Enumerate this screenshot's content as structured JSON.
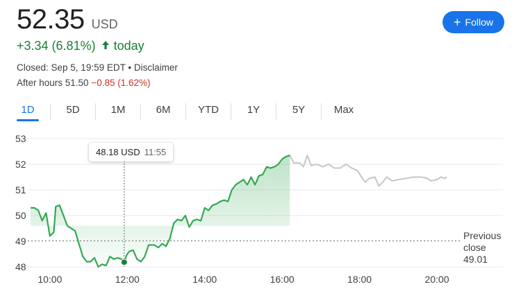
{
  "quote": {
    "price": "52.35",
    "currency": "USD",
    "change": "+3.34 (6.81%)",
    "change_period": "today",
    "closed_text": "Closed: Sep 5, 19:59 EDT • Disclaimer",
    "after_hours_label": "After hours 51.50",
    "after_hours_change": "−0.85 (1.62%)"
  },
  "follow_button": {
    "label": "Follow",
    "icon": "plus-icon"
  },
  "tabs": [
    {
      "label": "1D",
      "active": true
    },
    {
      "label": "5D",
      "active": false
    },
    {
      "label": "1M",
      "active": false
    },
    {
      "label": "6M",
      "active": false
    },
    {
      "label": "YTD",
      "active": false
    },
    {
      "label": "1Y",
      "active": false
    },
    {
      "label": "5Y",
      "active": false
    },
    {
      "label": "Max",
      "active": false
    }
  ],
  "tooltip": {
    "value": "48.18 USD",
    "time": "11:55"
  },
  "previous_close": {
    "line1": "Previous",
    "line2": "close",
    "value": "49.01"
  },
  "colors": {
    "up": "#188038",
    "down": "#d93025",
    "accent": "#1a73e8",
    "after_hours_line": "#c4c7c5",
    "grid": "#e8eaed"
  },
  "chart_data": {
    "type": "line",
    "x_unit": "hours",
    "xlim": [
      9.5,
      20.7
    ],
    "ylim": [
      48,
      53
    ],
    "x_ticks": [
      {
        "v": 10,
        "label": "10:00"
      },
      {
        "v": 12,
        "label": "12:00"
      },
      {
        "v": 14,
        "label": "14:00"
      },
      {
        "v": 16,
        "label": "16:00"
      },
      {
        "v": 18,
        "label": "18:00"
      },
      {
        "v": 20,
        "label": "20:00"
      }
    ],
    "y_ticks": [
      48,
      49,
      50,
      51,
      52,
      53
    ],
    "previous_close": 49.01,
    "marker": {
      "x": 11.92,
      "y": 48.18
    },
    "regular_session": [
      [
        9.5,
        50.3
      ],
      [
        9.6,
        50.3
      ],
      [
        9.7,
        50.2
      ],
      [
        9.8,
        49.8
      ],
      [
        9.9,
        50.1
      ],
      [
        10.0,
        49.2
      ],
      [
        10.1,
        49.35
      ],
      [
        10.15,
        50.35
      ],
      [
        10.25,
        50.4
      ],
      [
        10.35,
        50.0
      ],
      [
        10.45,
        49.6
      ],
      [
        10.55,
        49.5
      ],
      [
        10.65,
        49.4
      ],
      [
        10.75,
        48.9
      ],
      [
        10.85,
        48.4
      ],
      [
        10.95,
        48.2
      ],
      [
        11.05,
        48.2
      ],
      [
        11.15,
        48.35
      ],
      [
        11.25,
        48.0
      ],
      [
        11.35,
        48.1
      ],
      [
        11.45,
        48.05
      ],
      [
        11.55,
        48.4
      ],
      [
        11.65,
        48.3
      ],
      [
        11.75,
        48.35
      ],
      [
        11.85,
        48.3
      ],
      [
        11.92,
        48.18
      ],
      [
        11.98,
        48.45
      ],
      [
        12.05,
        48.6
      ],
      [
        12.15,
        48.65
      ],
      [
        12.25,
        48.3
      ],
      [
        12.35,
        48.2
      ],
      [
        12.45,
        48.4
      ],
      [
        12.55,
        48.85
      ],
      [
        12.7,
        48.85
      ],
      [
        12.8,
        48.75
      ],
      [
        12.9,
        48.9
      ],
      [
        13.0,
        48.8
      ],
      [
        13.1,
        49.1
      ],
      [
        13.2,
        49.7
      ],
      [
        13.3,
        49.85
      ],
      [
        13.4,
        49.8
      ],
      [
        13.5,
        50.0
      ],
      [
        13.6,
        49.55
      ],
      [
        13.7,
        49.8
      ],
      [
        13.8,
        49.85
      ],
      [
        13.9,
        49.8
      ],
      [
        14.0,
        50.3
      ],
      [
        14.1,
        50.2
      ],
      [
        14.2,
        50.4
      ],
      [
        14.3,
        50.45
      ],
      [
        14.4,
        50.55
      ],
      [
        14.5,
        50.6
      ],
      [
        14.6,
        50.55
      ],
      [
        14.7,
        51.0
      ],
      [
        14.8,
        51.2
      ],
      [
        14.9,
        51.3
      ],
      [
        15.0,
        51.4
      ],
      [
        15.1,
        51.2
      ],
      [
        15.2,
        51.5
      ],
      [
        15.3,
        51.2
      ],
      [
        15.4,
        51.55
      ],
      [
        15.5,
        51.6
      ],
      [
        15.6,
        51.9
      ],
      [
        15.7,
        51.85
      ],
      [
        15.8,
        51.9
      ],
      [
        15.9,
        52.0
      ],
      [
        16.0,
        52.2
      ],
      [
        16.1,
        52.3
      ],
      [
        16.2,
        52.35
      ]
    ],
    "after_hours": [
      [
        16.2,
        52.35
      ],
      [
        16.3,
        52.05
      ],
      [
        16.45,
        52.05
      ],
      [
        16.55,
        51.9
      ],
      [
        16.65,
        52.35
      ],
      [
        16.75,
        51.95
      ],
      [
        16.9,
        52.0
      ],
      [
        17.05,
        51.9
      ],
      [
        17.2,
        52.0
      ],
      [
        17.35,
        51.85
      ],
      [
        17.5,
        51.85
      ],
      [
        17.65,
        52.0
      ],
      [
        17.8,
        51.85
      ],
      [
        17.95,
        51.75
      ],
      [
        18.05,
        51.5
      ],
      [
        18.15,
        51.3
      ],
      [
        18.25,
        51.45
      ],
      [
        18.4,
        51.5
      ],
      [
        18.5,
        51.15
      ],
      [
        18.6,
        51.3
      ],
      [
        18.7,
        51.5
      ],
      [
        18.85,
        51.35
      ],
      [
        19.0,
        51.4
      ],
      [
        19.2,
        51.45
      ],
      [
        19.4,
        51.5
      ],
      [
        19.6,
        51.5
      ],
      [
        19.75,
        51.45
      ],
      [
        19.85,
        51.35
      ],
      [
        20.0,
        51.4
      ],
      [
        20.1,
        51.5
      ],
      [
        20.2,
        51.45
      ],
      [
        20.25,
        51.5
      ]
    ]
  }
}
